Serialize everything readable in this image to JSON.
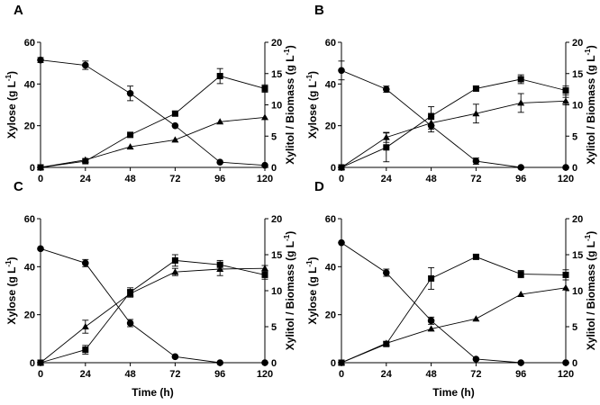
{
  "chart_data": [
    {
      "type": "line",
      "panel_label": "A",
      "x": [
        0,
        24,
        48,
        72,
        96,
        120
      ],
      "xticks": [
        "0",
        "24",
        "48",
        "72",
        "96",
        "120"
      ],
      "xlabel": "",
      "ylabel_left": "Xylose (g L-1)",
      "ylabel_right": "Xylitol / Biomass (g L-1)",
      "ylim_left": [
        0,
        60
      ],
      "ylim_right": [
        0,
        20
      ],
      "yticks_left": [
        "0",
        "20",
        "40",
        "60"
      ],
      "yticks_right": [
        "0",
        "5",
        "10",
        "15",
        "20"
      ],
      "series": [
        {
          "marker": "circle",
          "axis": "left",
          "values": [
            51.5,
            49,
            35.5,
            20,
            2.5,
            1
          ],
          "errors": [
            1.2,
            2,
            3.5,
            0,
            0,
            0
          ]
        },
        {
          "marker": "square",
          "axis": "right",
          "values": [
            0,
            1,
            5.2,
            8.6,
            14.6,
            12.6
          ],
          "errors": [
            0,
            0,
            0,
            0.4,
            1.2,
            0.6
          ]
        },
        {
          "marker": "triangle",
          "axis": "right",
          "values": [
            0,
            1.2,
            3.3,
            4.4,
            7.3,
            8
          ]
        }
      ]
    },
    {
      "type": "line",
      "panel_label": "B",
      "x": [
        0,
        24,
        48,
        72,
        96,
        120
      ],
      "xticks": [
        "0",
        "24",
        "48",
        "72",
        "96",
        "120"
      ],
      "xlabel": "",
      "ylabel_left": "Xylose (g L-1)",
      "ylabel_right": "Xylitol / Biomass (g L-1)",
      "ylim_left": [
        0,
        60
      ],
      "ylim_right": [
        0,
        20
      ],
      "yticks_left": [
        "0",
        "20",
        "40",
        "60"
      ],
      "yticks_right": [
        "0",
        "5",
        "10",
        "15",
        "20"
      ],
      "series": [
        {
          "marker": "circle",
          "axis": "left",
          "values": [
            46.5,
            37.5,
            20,
            3,
            0,
            0
          ],
          "errors": [
            4.5,
            1.5,
            3,
            1.5,
            0,
            0
          ]
        },
        {
          "marker": "square",
          "axis": "right",
          "values": [
            0,
            3.2,
            8.2,
            12.6,
            14.1,
            12.3
          ],
          "errors": [
            0,
            2.3,
            1.5,
            0.4,
            0.7,
            0.7
          ]
        },
        {
          "marker": "triangle",
          "axis": "right",
          "values": [
            0,
            4.8,
            7.1,
            8.6,
            10.3,
            10.6
          ],
          "errors": [
            0,
            0.8,
            1,
            1.5,
            1.5,
            0.6
          ]
        }
      ]
    },
    {
      "type": "line",
      "panel_label": "C",
      "x": [
        0,
        24,
        48,
        72,
        96,
        120
      ],
      "xticks": [
        "0",
        "24",
        "48",
        "72",
        "96",
        "120"
      ],
      "xlabel": "Time (h)",
      "ylabel_left": "Xylose (g L-1)",
      "ylabel_right": "Xylitol / Biomass (g L-1)",
      "ylim_left": [
        0,
        60
      ],
      "ylim_right": [
        0,
        20
      ],
      "yticks_left": [
        "0",
        "20",
        "40",
        "60"
      ],
      "yticks_right": [
        "0",
        "5",
        "10",
        "15",
        "20"
      ],
      "series": [
        {
          "marker": "circle",
          "axis": "left",
          "values": [
            47.5,
            41.5,
            16.5,
            2.5,
            0,
            0
          ],
          "errors": [
            0,
            1.5,
            1.5,
            0,
            0,
            0
          ]
        },
        {
          "marker": "square",
          "axis": "right",
          "values": [
            0,
            1.8,
            9.8,
            14.2,
            13.6,
            12.2
          ],
          "errors": [
            0,
            0.6,
            0.6,
            0.8,
            0.6,
            0.6
          ]
        },
        {
          "marker": "triangle",
          "axis": "right",
          "values": [
            0,
            5,
            9.6,
            12.6,
            13,
            13.1
          ],
          "errors": [
            0,
            0.9,
            0.5,
            0.5,
            0.9,
            0.4
          ]
        }
      ]
    },
    {
      "type": "line",
      "panel_label": "D",
      "x": [
        0,
        24,
        48,
        72,
        96,
        120
      ],
      "xticks": [
        "0",
        "24",
        "48",
        "72",
        "96",
        "120"
      ],
      "xlabel": "Time (h)",
      "ylabel_left": "Xylose (g L-1)",
      "ylabel_right": "Xylitol / Biomass (g L-1)",
      "ylim_left": [
        0,
        60
      ],
      "ylim_right": [
        0,
        20
      ],
      "yticks_left": [
        "0",
        "20",
        "40",
        "60"
      ],
      "yticks_right": [
        "0",
        "5",
        "10",
        "15",
        "20"
      ],
      "series": [
        {
          "marker": "circle",
          "axis": "left",
          "values": [
            50,
            37.5,
            17.5,
            1.5,
            0,
            0
          ],
          "errors": [
            0,
            1.5,
            1.5,
            0,
            0,
            0
          ]
        },
        {
          "marker": "square",
          "axis": "right",
          "values": [
            0,
            2.6,
            11.7,
            14.7,
            12.3,
            12.2
          ],
          "errors": [
            0,
            0.3,
            1.5,
            0.3,
            0.5,
            0.7
          ]
        },
        {
          "marker": "triangle",
          "axis": "right",
          "values": [
            0,
            2.7,
            4.7,
            6.1,
            9.5,
            10.4
          ]
        }
      ]
    }
  ]
}
